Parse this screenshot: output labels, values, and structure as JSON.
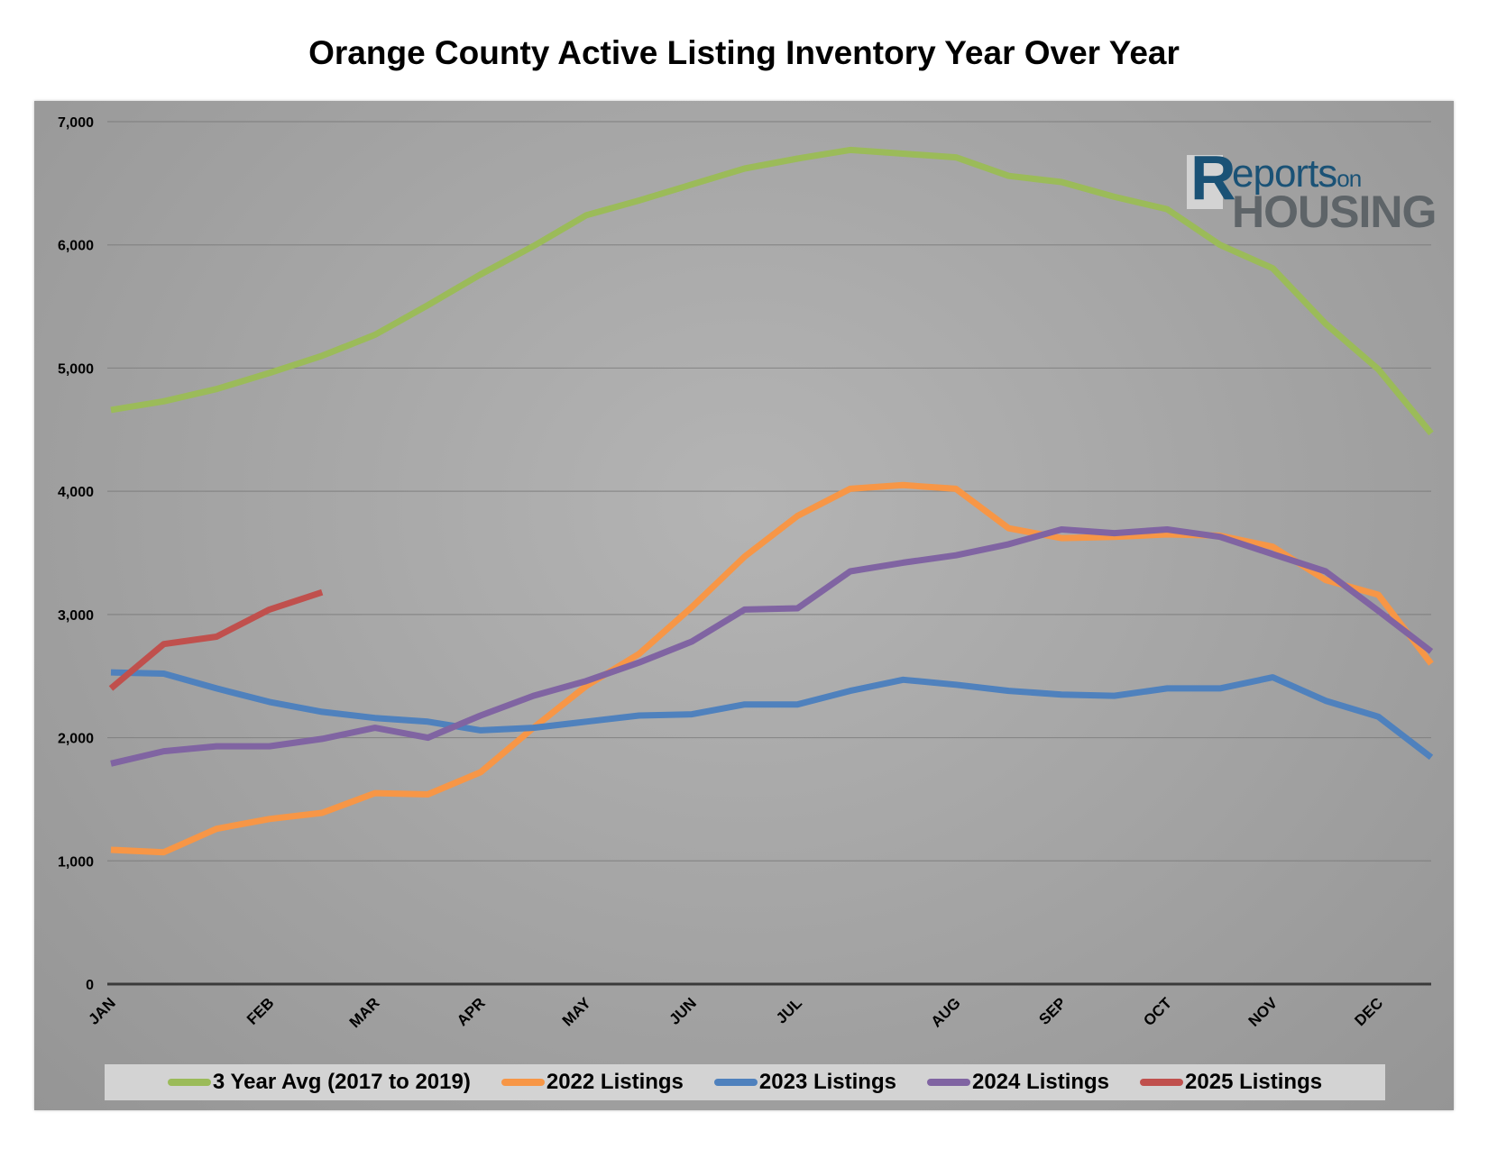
{
  "title": "Orange County Active Listing Inventory Year Over Year",
  "logo": {
    "line1": "eports",
    "line1_small": "on",
    "line2": "HOUSING",
    "initial": "R"
  },
  "chart_data": {
    "type": "line",
    "title": "Orange County Active Listing Inventory Year Over Year",
    "xlabel": "",
    "ylabel": "",
    "ylim": [
      0,
      7000
    ],
    "y_ticks": [
      "0",
      "1,000",
      "2,000",
      "3,000",
      "4,000",
      "5,000",
      "6,000",
      "7,000"
    ],
    "y_tick_values": [
      0,
      1000,
      2000,
      3000,
      4000,
      5000,
      6000,
      7000
    ],
    "x_period_count": 26,
    "x_tick_labels": [
      {
        "label": "JAN",
        "index": 0
      },
      {
        "label": "FEB",
        "index": 3
      },
      {
        "label": "MAR",
        "index": 5
      },
      {
        "label": "APR",
        "index": 7
      },
      {
        "label": "MAY",
        "index": 9
      },
      {
        "label": "JUN",
        "index": 11
      },
      {
        "label": "JUL",
        "index": 13
      },
      {
        "label": "AUG",
        "index": 16
      },
      {
        "label": "SEP",
        "index": 18
      },
      {
        "label": "OCT",
        "index": 20
      },
      {
        "label": "NOV",
        "index": 22
      },
      {
        "label": "DEC",
        "index": 24
      }
    ],
    "grid": true,
    "legend_position": "bottom",
    "series": [
      {
        "name": "3 Year Avg (2017 to 2019)",
        "color": "#9bbb59",
        "values": [
          4660,
          4730,
          4830,
          4960,
          5100,
          5270,
          5510,
          5760,
          5990,
          6240,
          6360,
          6490,
          6620,
          6700,
          6770,
          6740,
          6710,
          6560,
          6510,
          6390,
          6290,
          6000,
          5810,
          5360,
          4990,
          4470
        ]
      },
      {
        "name": "2022 Listings",
        "color": "#f79646",
        "values": [
          1090,
          1070,
          1260,
          1340,
          1390,
          1550,
          1540,
          1720,
          2080,
          2420,
          2680,
          3060,
          3470,
          3800,
          4020,
          4050,
          4020,
          3700,
          3620,
          3630,
          3650,
          3640,
          3550,
          3280,
          3160,
          2600
        ]
      },
      {
        "name": "2023 Listings",
        "color": "#4f81bd",
        "values": [
          2530,
          2520,
          2400,
          2290,
          2210,
          2160,
          2130,
          2060,
          2080,
          2130,
          2180,
          2190,
          2270,
          2270,
          2380,
          2470,
          2430,
          2380,
          2350,
          2340,
          2400,
          2400,
          2490,
          2300,
          2170,
          1840
        ]
      },
      {
        "name": "2024 Listings",
        "color": "#8064a2",
        "values": [
          1790,
          1890,
          1930,
          1930,
          1990,
          2080,
          2000,
          2180,
          2340,
          2460,
          2610,
          2780,
          3040,
          3050,
          3350,
          3420,
          3480,
          3570,
          3690,
          3660,
          3690,
          3630,
          3490,
          3350,
          3030,
          2700
        ]
      },
      {
        "name": "2025 Listings",
        "color": "#c0504d",
        "values": [
          2400,
          2760,
          2820,
          3040,
          3180
        ]
      }
    ]
  }
}
